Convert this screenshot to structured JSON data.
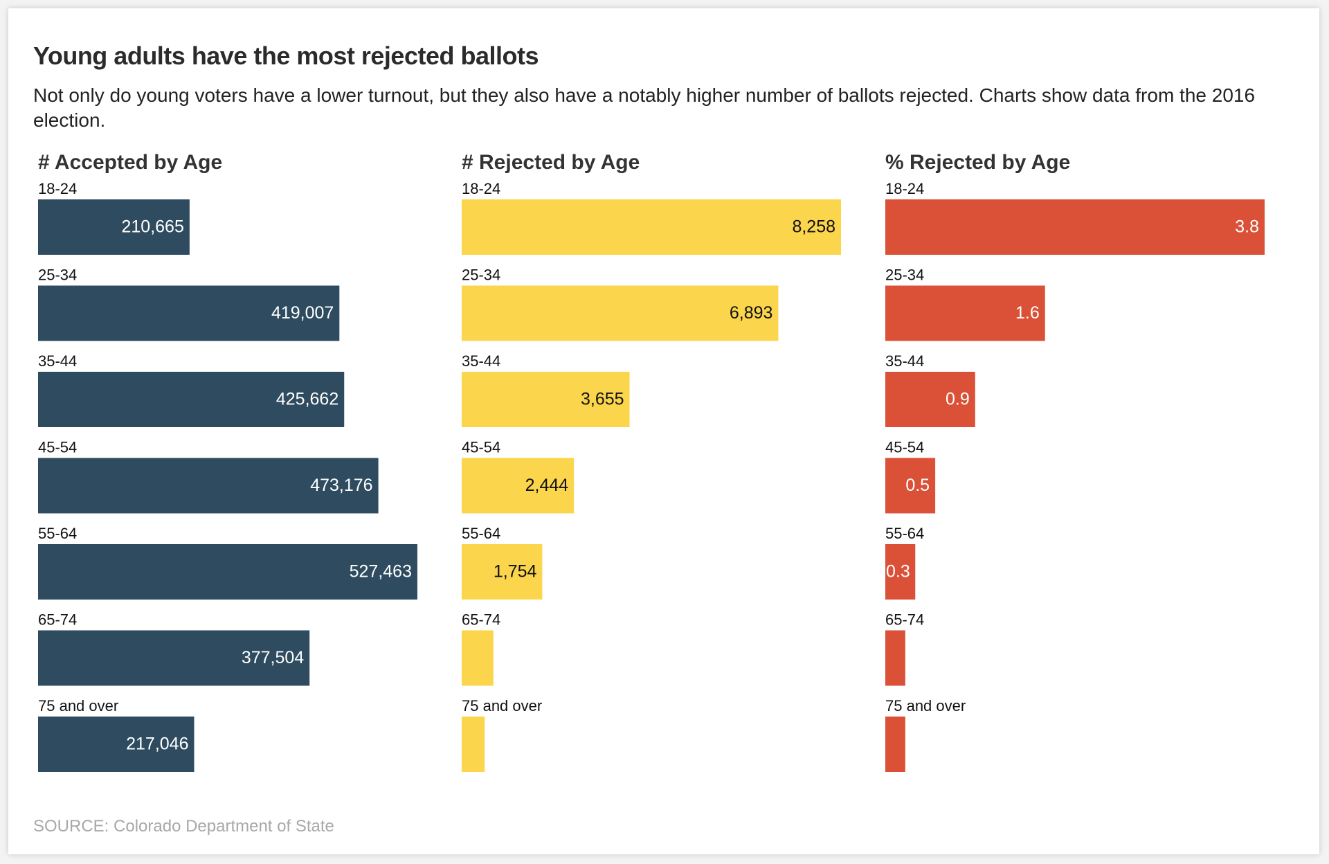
{
  "header": {
    "title": "Young adults have the most rejected ballots",
    "subtitle": "Not only do young voters have a lower turnout, but they also have a notably higher number of ballots rejected. Charts show data from the 2016 election."
  },
  "source": "SOURCE: Colorado Department of State",
  "chart_data": [
    {
      "type": "bar",
      "orientation": "horizontal",
      "title": "# Accepted by Age",
      "categories": [
        "18-24",
        "25-34",
        "35-44",
        "45-54",
        "55-64",
        "65-74",
        "75 and over"
      ],
      "values": [
        210665,
        419007,
        425662,
        473176,
        527463,
        377504,
        217046
      ],
      "value_labels": [
        "210,665",
        "419,007",
        "425,662",
        "473,176",
        "527,463",
        "377,504",
        "217,046"
      ],
      "color": "#2f4b5f",
      "label_color": "#ffffff"
    },
    {
      "type": "bar",
      "orientation": "horizontal",
      "title": "# Rejected by Age",
      "categories": [
        "18-24",
        "25-34",
        "35-44",
        "45-54",
        "55-64",
        "65-74",
        "75 and over"
      ],
      "values": [
        8258,
        6893,
        3655,
        2444,
        1754,
        690,
        500
      ],
      "value_labels": [
        "8,258",
        "6,893",
        "3,655",
        "2,444",
        "1,754",
        null,
        null
      ],
      "color": "#fbd54c",
      "label_color": "#111111"
    },
    {
      "type": "bar",
      "orientation": "horizontal",
      "title": "% Rejected by Age",
      "categories": [
        "18-24",
        "25-34",
        "35-44",
        "45-54",
        "55-64",
        "65-74",
        "75 and over"
      ],
      "values": [
        3.8,
        1.6,
        0.9,
        0.5,
        0.3,
        0.2,
        0.2
      ],
      "value_labels": [
        "3.8",
        "1.6",
        "0.9",
        "0.5",
        "0.3",
        null,
        null
      ],
      "color": "#da5138",
      "label_color": "#ffffff"
    }
  ]
}
